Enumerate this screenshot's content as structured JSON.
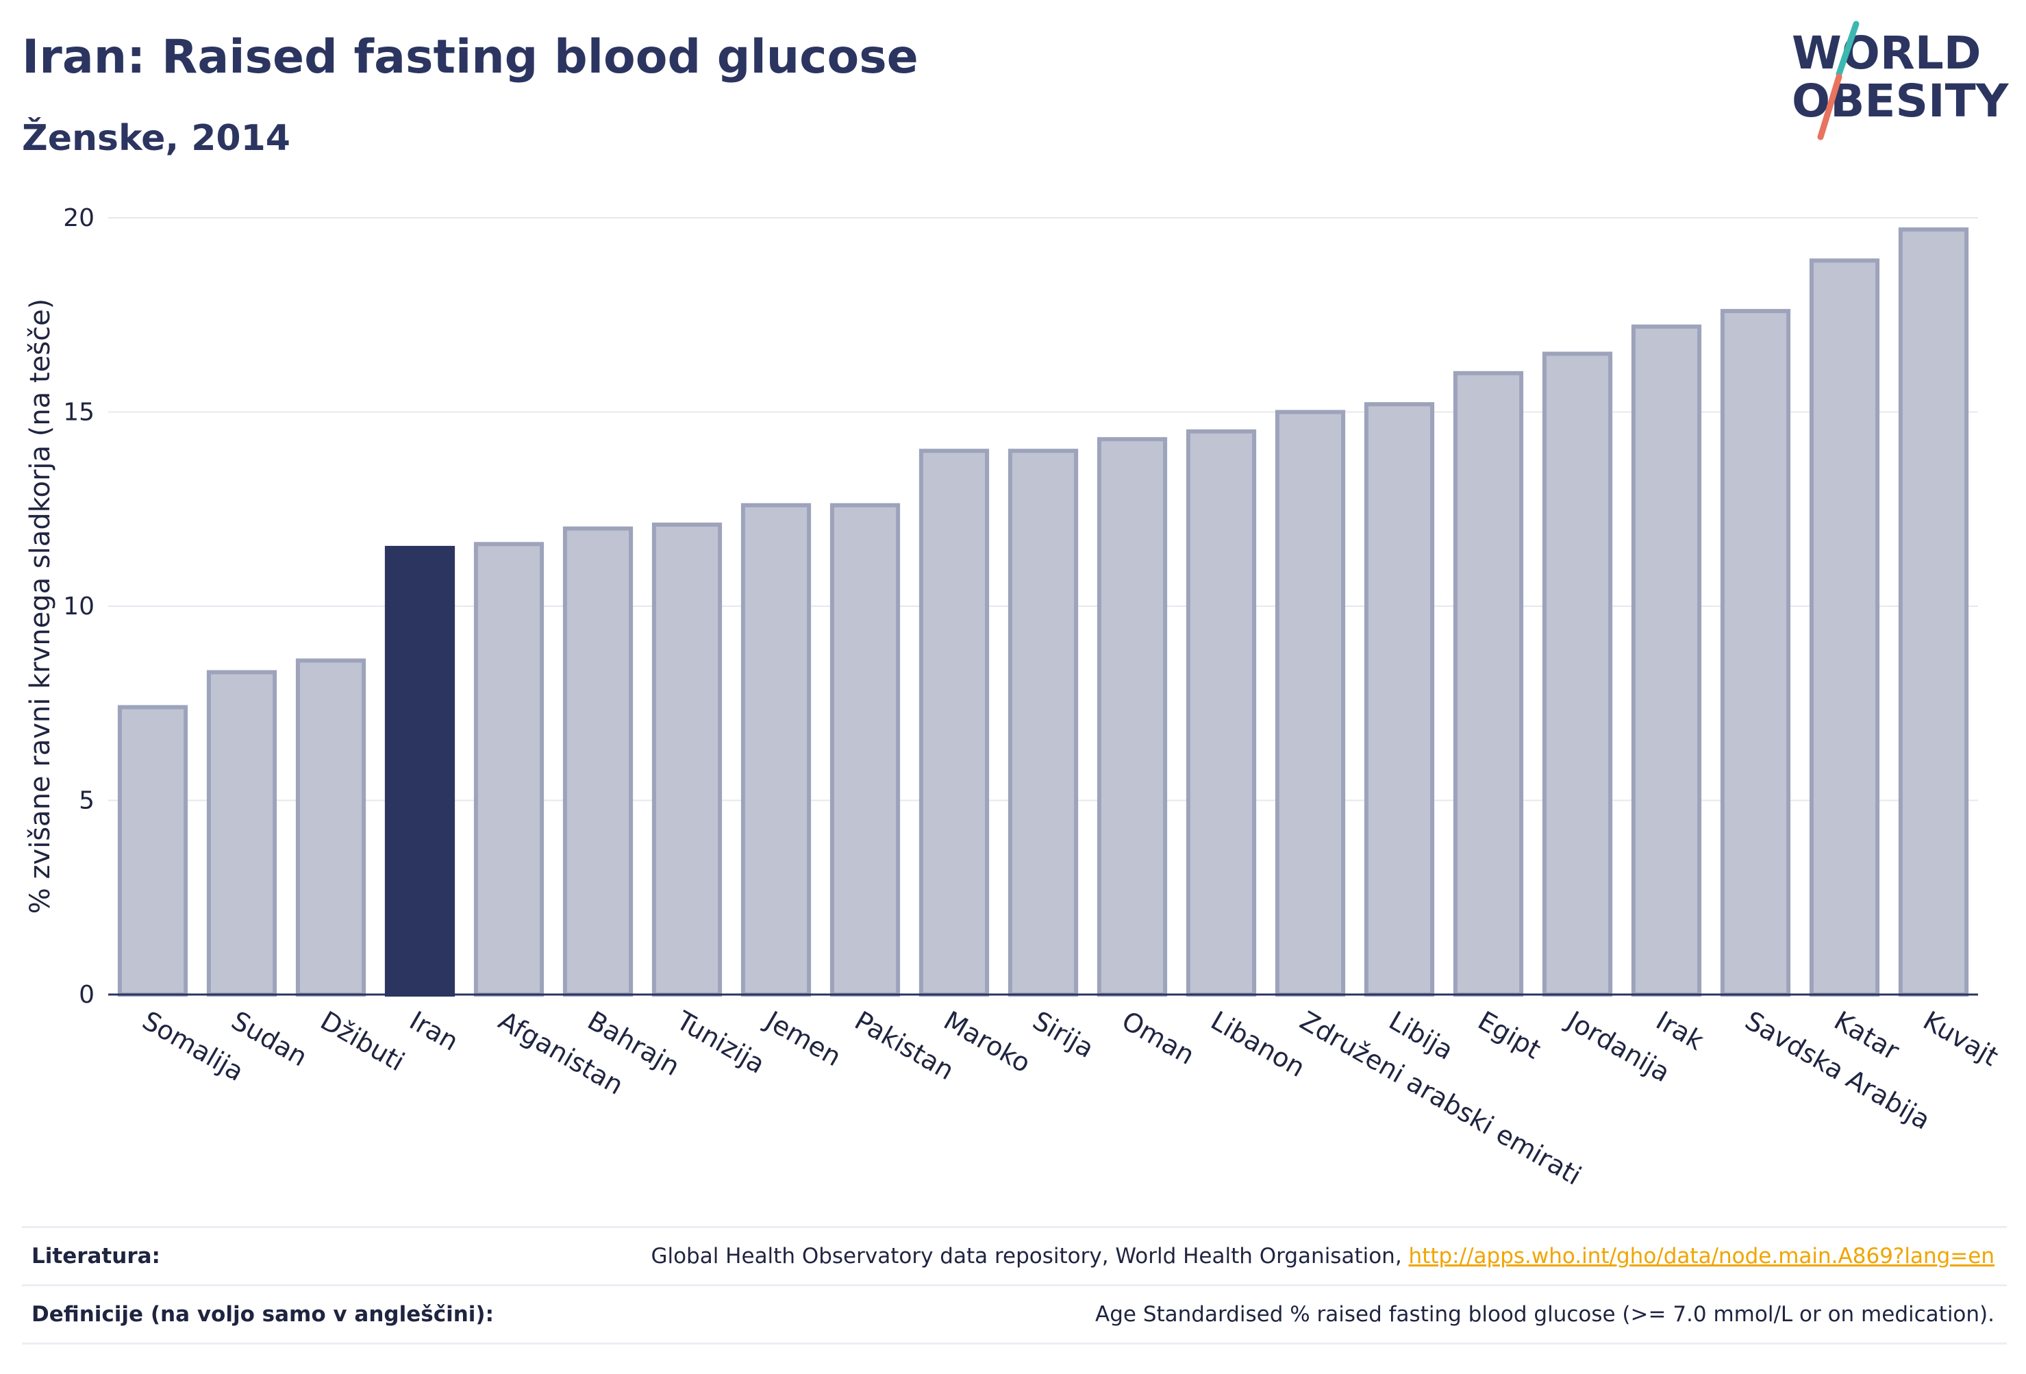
{
  "header": {
    "title": "Iran: Raised fasting blood glucose",
    "subtitle": "Ženske, 2014"
  },
  "logo": {
    "line1": "WORLD",
    "line2": "OBESITY"
  },
  "chart_data": {
    "type": "bar",
    "title": "Iran: Raised fasting blood glucose",
    "subtitle": "Ženske, 2014",
    "ylabel": "% zvišane ravni krvnega sladkorja (na tešče)",
    "xlabel": "",
    "ylim": [
      0,
      20
    ],
    "yticks": [
      0,
      5,
      10,
      15,
      20
    ],
    "grid": true,
    "highlight": "Iran",
    "colors": {
      "bar": "#bfc3d2",
      "bar_edge": "#9da3bb",
      "highlight": "#2b3560",
      "axis": "#2b3560",
      "grid": "#e6e8ef"
    },
    "categories": [
      "Somalija",
      "Sudan",
      "Džibuti",
      "Iran",
      "Afganistan",
      "Bahrajn",
      "Tunizija",
      "Jemen",
      "Pakistan",
      "Maroko",
      "Sirija",
      "Oman",
      "Libanon",
      "Združeni arabski emirati",
      "Libija",
      "Egipt",
      "Jordanija",
      "Irak",
      "Savdska Arabija",
      "Katar",
      "Kuvajt"
    ],
    "values": [
      7.4,
      8.3,
      8.6,
      11.5,
      11.6,
      12.0,
      12.1,
      12.6,
      12.6,
      14.0,
      14.0,
      14.3,
      14.5,
      15.0,
      15.2,
      16.0,
      16.5,
      17.2,
      17.6,
      18.9,
      19.7
    ]
  },
  "footer": {
    "literature_label": "Literatura:",
    "literature_text": "Global Health Observatory data repository, World Health Organisation, ",
    "literature_link": "http://apps.who.int/gho/data/node.main.A869?lang=en",
    "definitions_label": "Definicije (na voljo samo v angleščini):",
    "definitions_text": "Age Standardised % raised fasting blood glucose (>= 7.0 mmol/L or on medication)."
  }
}
